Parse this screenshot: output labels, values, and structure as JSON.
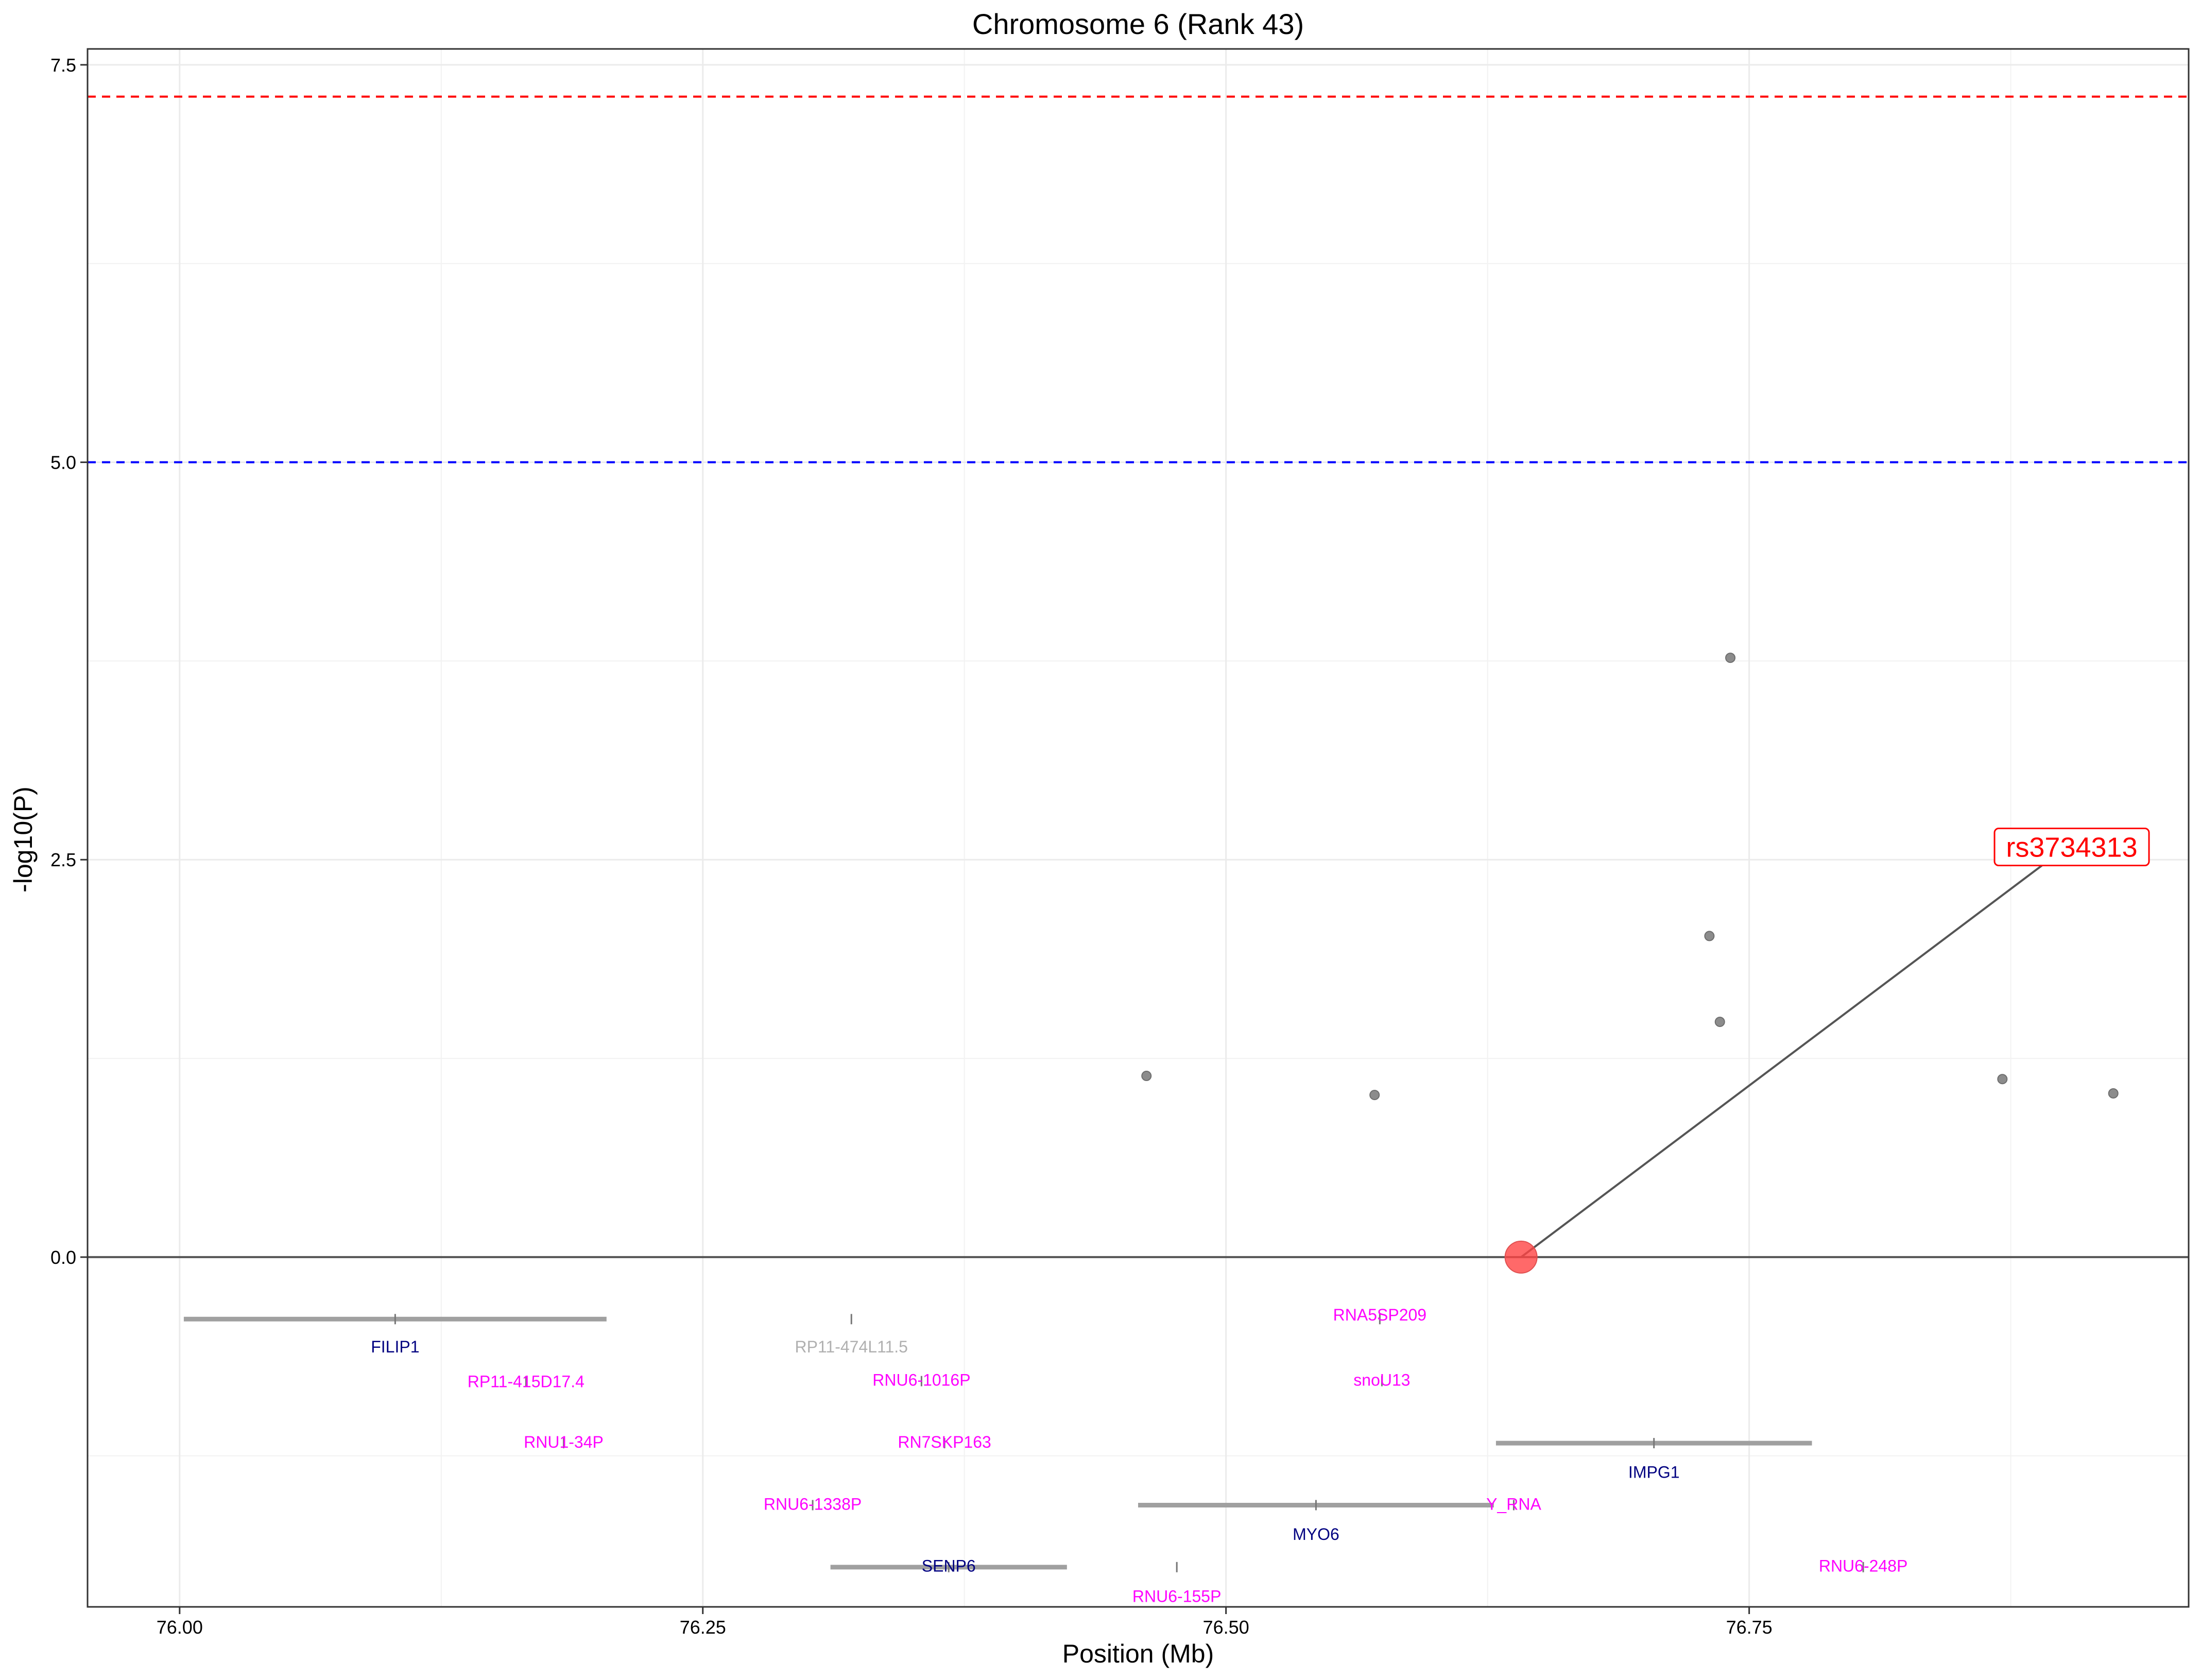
{
  "chart_data": {
    "type": "scatter",
    "title": "Chromosome 6 (Rank 43)",
    "xlabel": "Position (Mb)",
    "ylabel": "-log10(P)",
    "xlim": [
      75.956,
      76.96
    ],
    "ylim": [
      -2.2,
      7.6
    ],
    "xticks": [
      76.0,
      76.25,
      76.5,
      76.75
    ],
    "xtick_labels": [
      "76.00",
      "76.25",
      "76.50",
      "76.75"
    ],
    "yticks": [
      0.0,
      2.5,
      5.0,
      7.5
    ],
    "ytick_labels": [
      "0.0",
      "2.5",
      "5.0",
      "7.5"
    ],
    "grid": true,
    "thresholds": [
      {
        "value": 7.3,
        "color": "#ff0000",
        "style": "dashed"
      },
      {
        "value": 5.0,
        "color": "#0000ff",
        "style": "dashed"
      }
    ],
    "points": [
      {
        "x": 76.462,
        "y": 1.14
      },
      {
        "x": 76.571,
        "y": 1.02
      },
      {
        "x": 76.731,
        "y": 2.02
      },
      {
        "x": 76.736,
        "y": 1.48
      },
      {
        "x": 76.741,
        "y": 3.77
      },
      {
        "x": 76.871,
        "y": 1.12
      },
      {
        "x": 76.924,
        "y": 1.03
      }
    ],
    "lead_snp": {
      "x": 76.641,
      "y": 0.0,
      "label": "rs3734313",
      "label_x": 76.882,
      "label_y": 2.58,
      "color": "#ff4444"
    },
    "genes": [
      {
        "name": "FILIP1",
        "start": 76.002,
        "end": 76.204,
        "y": -0.39,
        "label_y": -0.56,
        "color": "#000080"
      },
      {
        "name": "RP11-474L11.5",
        "start": 76.32,
        "end": 76.322,
        "y": -0.39,
        "label_y": -0.56,
        "color": "#b0b0b0"
      },
      {
        "name": "RNA5SP209",
        "start": 76.573,
        "end": 76.574,
        "y": -0.39,
        "label_y": -0.36,
        "color": "#ff00ff"
      },
      {
        "name": "RP11-415D17.4",
        "start": 76.164,
        "end": 76.167,
        "y": -0.78,
        "label_y": -0.78,
        "color": "#ff00ff"
      },
      {
        "name": "RNU6-1016P",
        "start": 76.354,
        "end": 76.355,
        "y": -0.78,
        "label_y": -0.77,
        "color": "#ff00ff"
      },
      {
        "name": "snoU13",
        "start": 76.574,
        "end": 76.575,
        "y": -0.78,
        "label_y": -0.77,
        "color": "#ff00ff"
      },
      {
        "name": "RNU1-34P",
        "start": 76.183,
        "end": 76.184,
        "y": -1.17,
        "label_y": -1.16,
        "color": "#ff00ff"
      },
      {
        "name": "RN7SKP163",
        "start": 76.365,
        "end": 76.366,
        "y": -1.17,
        "label_y": -1.16,
        "color": "#ff00ff"
      },
      {
        "name": "IMPG1",
        "start": 76.629,
        "end": 76.78,
        "y": -1.17,
        "label_y": -1.35,
        "color": "#000080"
      },
      {
        "name": "RNU6-1338P",
        "start": 76.302,
        "end": 76.303,
        "y": -1.56,
        "label_y": -1.55,
        "color": "#ff00ff"
      },
      {
        "name": "MYO6",
        "start": 76.458,
        "end": 76.628,
        "y": -1.56,
        "label_y": -1.74,
        "color": "#000080"
      },
      {
        "name": "Y_RNA",
        "start": 76.637,
        "end": 76.638,
        "y": -1.56,
        "label_y": -1.55,
        "color": "#ff00ff"
      },
      {
        "name": "SENP6",
        "start": 76.311,
        "end": 76.424,
        "y": -1.95,
        "label_y": -1.94,
        "color": "#000080"
      },
      {
        "name": "RNU6-155P",
        "start": 76.476,
        "end": 76.477,
        "y": -1.95,
        "label_y": -2.13,
        "color": "#ff00ff"
      },
      {
        "name": "RNU6-248P",
        "start": 76.804,
        "end": 76.805,
        "y": -1.95,
        "label_y": -1.94,
        "color": "#ff00ff"
      }
    ]
  }
}
